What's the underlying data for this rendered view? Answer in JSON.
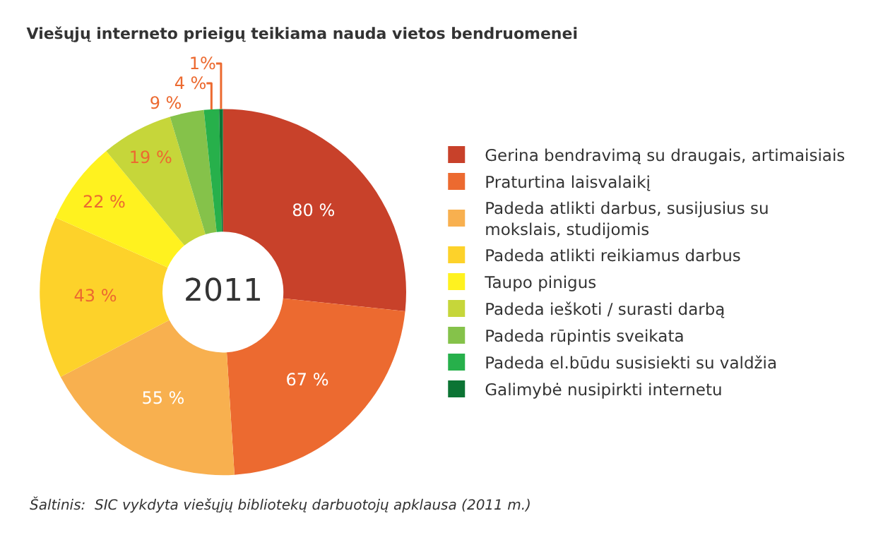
{
  "chart_data": {
    "type": "donut",
    "title": "Viešųjų interneto prieigų teikiama nauda vietos bendruomenei",
    "categories": [
      "Gerina bendravimą su draugais, artimaisiais",
      "Praturtina laisvalaikį",
      "Padeda atlikti darbus, susijusius su mokslais, studijomis",
      "Padeda atlikti reikiamus darbus",
      "Taupo pinigus",
      "Padeda ieškoti / surasti darbą",
      "Padeda rūpintis sveikata",
      "Padeda el.būdu susisiekti su valdžia",
      "Galimybė nusipirkti internetu"
    ],
    "values": [
      80,
      67,
      55,
      43,
      22,
      19,
      9,
      4,
      1
    ],
    "value_labels": [
      "80 %",
      "67 %",
      "55 %",
      "43 %",
      "22 %",
      "19 %",
      "9 %",
      "4 %",
      "1%"
    ],
    "colors": [
      "#c8412a",
      "#ec6a30",
      "#f8b04f",
      "#fdd22a",
      "#fff21f",
      "#c6d63a",
      "#85c24a",
      "#27b04b",
      "#0c7434"
    ],
    "annotations": [
      "2011",
      "Šaltinis:  SIC vykdyta viešųjų bibliotekų darbuotojų apklausa (2011 m.)"
    ],
    "legend": "right"
  }
}
